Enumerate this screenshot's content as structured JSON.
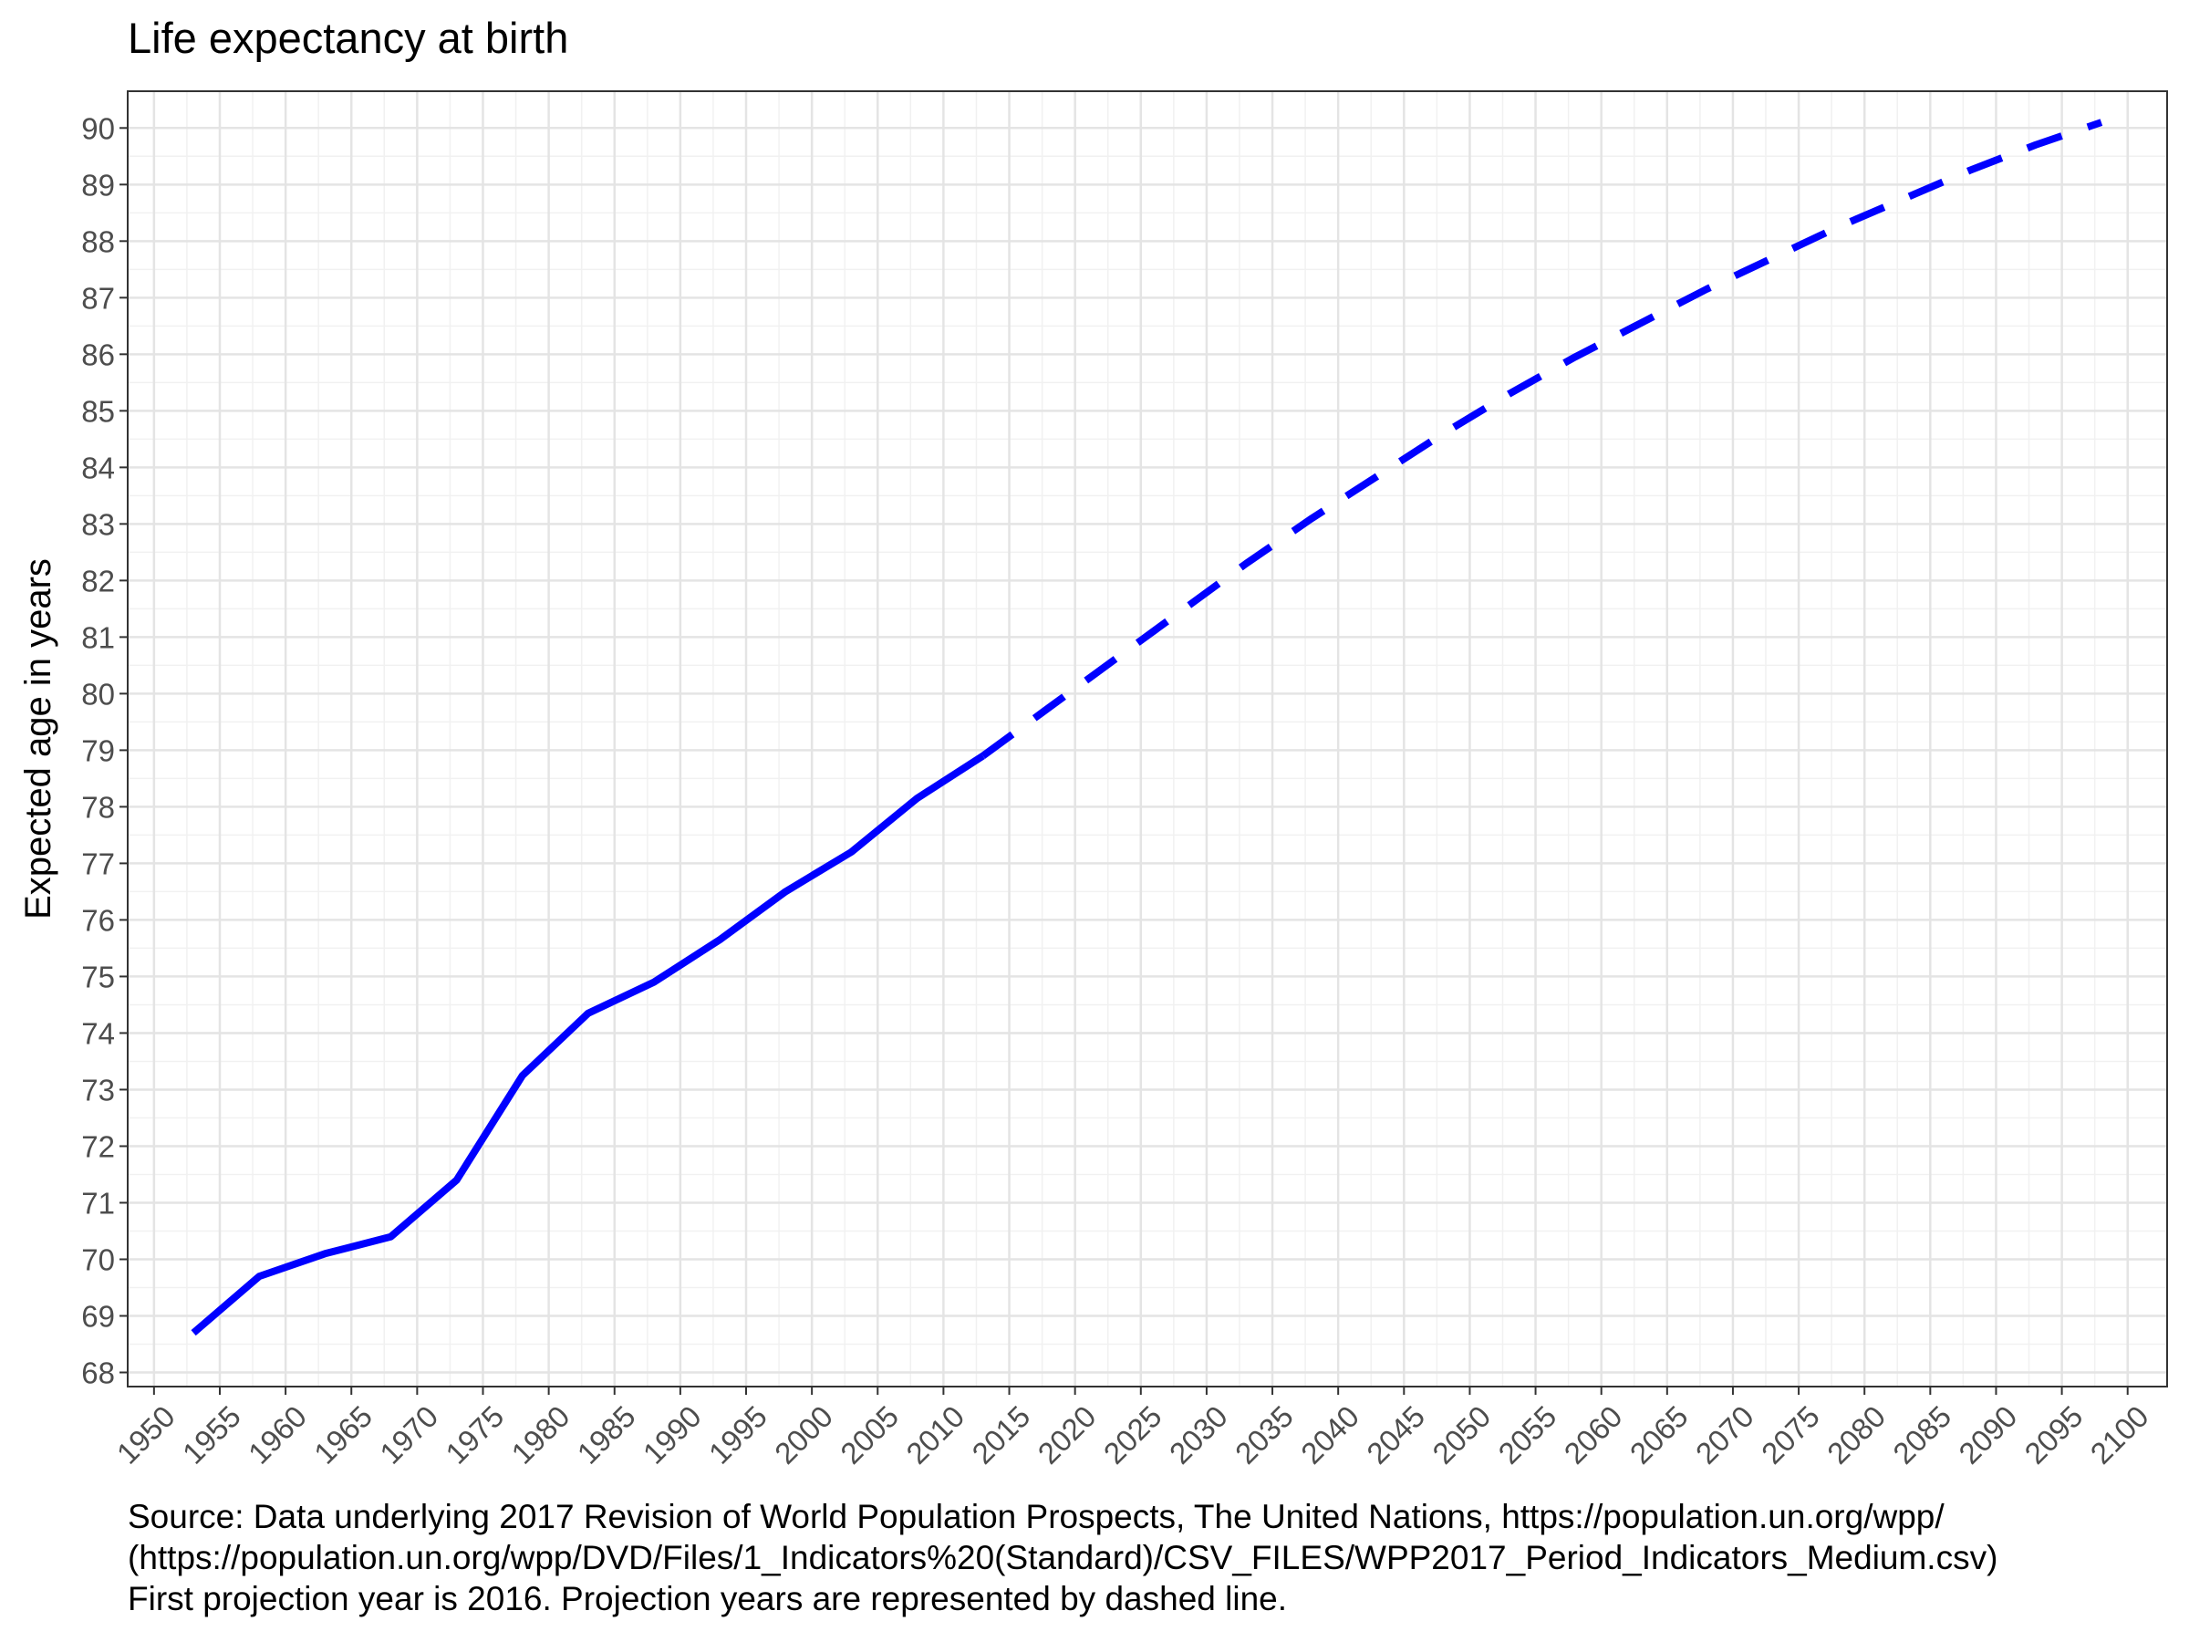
{
  "chart_data": {
    "type": "line",
    "title": "Life expectancy at birth",
    "xlabel": "",
    "ylabel": "Expected age in years",
    "xlim": [
      1948,
      2103
    ],
    "ylim": [
      67.75,
      90.65
    ],
    "x_ticks": [
      1950,
      1955,
      1960,
      1965,
      1970,
      1975,
      1980,
      1985,
      1990,
      1995,
      2000,
      2005,
      2010,
      2015,
      2020,
      2025,
      2030,
      2035,
      2040,
      2045,
      2050,
      2055,
      2060,
      2065,
      2070,
      2075,
      2080,
      2085,
      2090,
      2095,
      2100
    ],
    "y_ticks": [
      68,
      69,
      70,
      71,
      72,
      73,
      74,
      75,
      76,
      77,
      78,
      79,
      80,
      81,
      82,
      83,
      84,
      85,
      86,
      87,
      88,
      89,
      90
    ],
    "grid": true,
    "series": [
      {
        "style": "solid",
        "color": "#0000FF",
        "x": [
          1953,
          1958,
          1963,
          1968,
          1973,
          1978,
          1983,
          1988,
          1993,
          1998,
          2003,
          2008,
          2013
        ],
        "y": [
          68.7,
          69.7,
          70.1,
          70.4,
          71.4,
          73.25,
          74.35,
          74.9,
          75.65,
          76.5,
          77.2,
          78.15,
          78.9
        ]
      },
      {
        "style": "dashed",
        "color": "#0000FF",
        "x": [
          2013,
          2018,
          2023,
          2028,
          2033,
          2038,
          2043,
          2048,
          2053,
          2058,
          2063,
          2068,
          2073,
          2078,
          2083,
          2088,
          2093,
          2098
        ],
        "y": [
          78.9,
          79.75,
          80.6,
          81.45,
          82.3,
          83.1,
          83.85,
          84.6,
          85.3,
          85.95,
          86.55,
          87.15,
          87.7,
          88.25,
          88.75,
          89.25,
          89.7,
          90.1
        ]
      }
    ]
  },
  "caption": {
    "line1": "Source: Data underlying 2017 Revision of World Population Prospects, The United Nations, https://population.un.org/wpp/",
    "line2": "(https://population.un.org/wpp/DVD/Files/1_Indicators%20(Standard)/CSV_FILES/WPP2017_Period_Indicators_Medium.csv)",
    "line3": "First projection year is 2016. Projection years are represented by dashed line."
  }
}
